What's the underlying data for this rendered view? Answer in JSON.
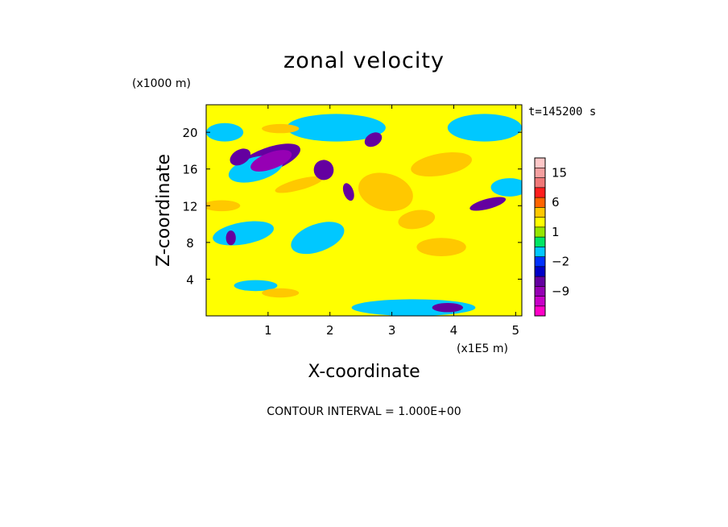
{
  "chart_data": {
    "type": "heatmap",
    "title": "zonal velocity",
    "xlabel": "X-coordinate",
    "ylabel": "Z-coordinate",
    "x_unit": "(x1E5 m)",
    "y_unit": "(x1000 m)",
    "time_label": "t=145200 s",
    "footer": "CONTOUR INTERVAL = 1.000E+00",
    "xlim": [
      0,
      5.1
    ],
    "ylim": [
      0,
      23
    ],
    "x_ticks": [
      1,
      2,
      3,
      4,
      5
    ],
    "x_tick_labels": [
      "1",
      "2",
      "3",
      "4",
      "5"
    ],
    "y_ticks": [
      4,
      8,
      12,
      16,
      20
    ],
    "y_tick_labels": [
      "4",
      "8",
      "12",
      "16",
      "20"
    ],
    "grid": false,
    "colorbar": {
      "levels": [
        -15,
        -12,
        -9,
        -6,
        -3,
        -2,
        -1,
        0,
        1,
        2,
        3,
        6,
        9,
        12,
        15,
        18
      ],
      "colors": [
        "#ff00c8",
        "#c800c8",
        "#9600b4",
        "#6400a0",
        "#0000c8",
        "#0032ff",
        "#00c8ff",
        "#00e664",
        "#96e600",
        "#ffff00",
        "#ffc800",
        "#ff6400",
        "#ff1e1e",
        "#f07878",
        "#f5a0a0",
        "#ffc8c8"
      ],
      "labeled_values": [
        15,
        6,
        1,
        -2,
        -9
      ],
      "labels": [
        "15",
        "6",
        "1",
        "−2",
        "−9"
      ]
    },
    "features": [
      {
        "x": 1.0,
        "z": 17.0,
        "rx": 0.55,
        "rz": 1.3,
        "angle": -20,
        "u": -4
      },
      {
        "x": 1.05,
        "z": 16.9,
        "rx": 0.35,
        "rz": 0.9,
        "angle": -20,
        "u": -7
      },
      {
        "x": 0.55,
        "z": 17.3,
        "rx": 0.18,
        "rz": 0.8,
        "angle": -30,
        "u": -5
      },
      {
        "x": 0.8,
        "z": 16.0,
        "rx": 0.45,
        "rz": 1.3,
        "angle": -15,
        "u": -1
      },
      {
        "x": 1.9,
        "z": 15.9,
        "rx": 0.16,
        "rz": 1.1,
        "angle": -25,
        "u": -5
      },
      {
        "x": 2.3,
        "z": 13.5,
        "rx": 0.08,
        "rz": 1.0,
        "angle": -20,
        "u": -5
      },
      {
        "x": 2.7,
        "z": 19.2,
        "rx": 0.15,
        "rz": 0.7,
        "angle": -30,
        "u": -6
      },
      {
        "x": 4.55,
        "z": 12.2,
        "rx": 0.3,
        "rz": 0.55,
        "angle": -15,
        "u": -5
      },
      {
        "x": 0.4,
        "z": 8.5,
        "rx": 0.08,
        "rz": 0.8,
        "angle": 0,
        "u": -4
      },
      {
        "x": 3.9,
        "z": 0.9,
        "rx": 0.25,
        "rz": 0.5,
        "angle": 0,
        "u": -4
      },
      {
        "x": 0.6,
        "z": 9.0,
        "rx": 0.5,
        "rz": 1.2,
        "angle": -10,
        "u": -1
      },
      {
        "x": 1.8,
        "z": 8.5,
        "rx": 0.45,
        "rz": 1.5,
        "angle": -20,
        "u": -1
      },
      {
        "x": 3.35,
        "z": 0.9,
        "rx": 1.0,
        "rz": 0.9,
        "angle": 0,
        "u": -1
      },
      {
        "x": 0.8,
        "z": 3.3,
        "rx": 0.35,
        "rz": 0.6,
        "angle": 0,
        "u": -1
      },
      {
        "x": 0.25,
        "z": 12.0,
        "rx": 0.3,
        "rz": 0.6,
        "angle": 0,
        "u": 4
      },
      {
        "x": 1.5,
        "z": 14.3,
        "rx": 0.4,
        "rz": 0.6,
        "angle": -15,
        "u": 3
      },
      {
        "x": 1.2,
        "z": 20.4,
        "rx": 0.3,
        "rz": 0.5,
        "angle": 0,
        "u": 3
      },
      {
        "x": 2.9,
        "z": 13.5,
        "rx": 0.45,
        "rz": 2.0,
        "angle": 15,
        "u": 4
      },
      {
        "x": 3.8,
        "z": 16.5,
        "rx": 0.5,
        "rz": 1.2,
        "angle": -10,
        "u": 4
      },
      {
        "x": 3.4,
        "z": 10.5,
        "rx": 0.3,
        "rz": 1.0,
        "angle": -10,
        "u": 3
      },
      {
        "x": 3.8,
        "z": 7.5,
        "rx": 0.4,
        "rz": 1.0,
        "angle": 0,
        "u": 3
      },
      {
        "x": 1.2,
        "z": 2.5,
        "rx": 0.3,
        "rz": 0.5,
        "angle": 0,
        "u": 3
      },
      {
        "x": 4.8,
        "z": 5.0,
        "rx": 0.3,
        "rz": 1.0,
        "angle": 0,
        "u": 2
      },
      {
        "x": 2.1,
        "z": 20.5,
        "rx": 0.8,
        "rz": 1.5,
        "angle": 0,
        "u": -1
      },
      {
        "x": 4.5,
        "z": 20.5,
        "rx": 0.6,
        "rz": 1.5,
        "angle": 0,
        "u": -1
      },
      {
        "x": 0.3,
        "z": 20.0,
        "rx": 0.3,
        "rz": 1.0,
        "angle": 0,
        "u": -1
      },
      {
        "x": 4.9,
        "z": 14.0,
        "rx": 0.3,
        "rz": 1.0,
        "angle": 0,
        "u": -1
      }
    ]
  }
}
